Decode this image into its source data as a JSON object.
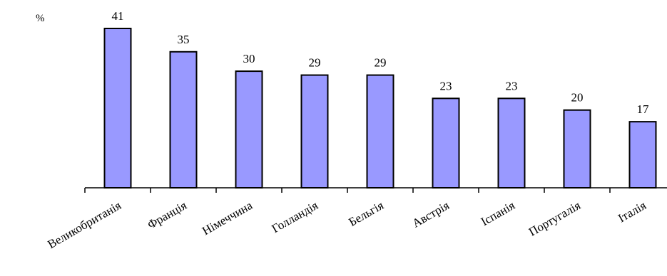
{
  "chart_data": {
    "type": "bar",
    "categories": [
      "Великобританія",
      "Франція",
      "Німеччина",
      "Голландія",
      "Бельгія",
      "Австрія",
      "Іспанія",
      "Португалія",
      "Італія"
    ],
    "values": [
      41,
      35,
      30,
      29,
      29,
      23,
      23,
      20,
      17
    ],
    "y_unit_label": "%",
    "data_labels": true,
    "grid": false,
    "legend": "none",
    "bar_color": "#9999ff",
    "ylim": [
      0,
      41
    ]
  }
}
